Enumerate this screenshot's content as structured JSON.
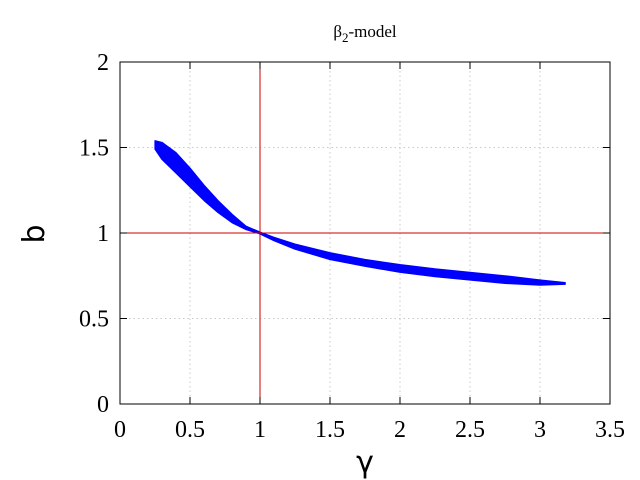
{
  "chart_data": {
    "type": "scatter",
    "title_main": "β",
    "title_sub": "2",
    "title_rest": "-model",
    "xlabel": "γ",
    "ylabel": "b",
    "xlim": [
      0,
      3.5
    ],
    "ylim": [
      0,
      2
    ],
    "xticks": [
      0,
      0.5,
      1,
      1.5,
      2,
      2.5,
      3,
      3.5
    ],
    "xtick_labels": [
      "0",
      "0.5",
      "1",
      "1.5",
      "2",
      "2.5",
      "3",
      "3.5"
    ],
    "yticks": [
      0,
      0.5,
      1,
      1.5,
      2
    ],
    "ytick_labels": [
      "0",
      "0.5",
      "1",
      "1.5",
      "2"
    ],
    "grid": true,
    "reference_lines": {
      "x": 1,
      "y": 1,
      "color": "#cc0000"
    },
    "series": [
      {
        "color": "#0000ff",
        "band": [
          {
            "x": 0.25,
            "y_low": 1.49,
            "y_high": 1.54
          },
          {
            "x": 0.3,
            "y_low": 1.43,
            "y_high": 1.53
          },
          {
            "x": 0.4,
            "y_low": 1.35,
            "y_high": 1.47
          },
          {
            "x": 0.5,
            "y_low": 1.27,
            "y_high": 1.38
          },
          {
            "x": 0.6,
            "y_low": 1.19,
            "y_high": 1.28
          },
          {
            "x": 0.7,
            "y_low": 1.12,
            "y_high": 1.19
          },
          {
            "x": 0.8,
            "y_low": 1.06,
            "y_high": 1.11
          },
          {
            "x": 0.9,
            "y_low": 1.02,
            "y_high": 1.04
          },
          {
            "x": 1.0,
            "y_low": 0.995,
            "y_high": 1.005
          },
          {
            "x": 1.1,
            "y_low": 0.955,
            "y_high": 0.975
          },
          {
            "x": 1.25,
            "y_low": 0.905,
            "y_high": 0.935
          },
          {
            "x": 1.5,
            "y_low": 0.845,
            "y_high": 0.885
          },
          {
            "x": 1.75,
            "y_low": 0.805,
            "y_high": 0.845
          },
          {
            "x": 2.0,
            "y_low": 0.77,
            "y_high": 0.815
          },
          {
            "x": 2.25,
            "y_low": 0.745,
            "y_high": 0.79
          },
          {
            "x": 2.5,
            "y_low": 0.725,
            "y_high": 0.77
          },
          {
            "x": 2.75,
            "y_low": 0.705,
            "y_high": 0.75
          },
          {
            "x": 3.0,
            "y_low": 0.695,
            "y_high": 0.725
          },
          {
            "x": 3.18,
            "y_low": 0.7,
            "y_high": 0.71
          }
        ]
      }
    ]
  }
}
